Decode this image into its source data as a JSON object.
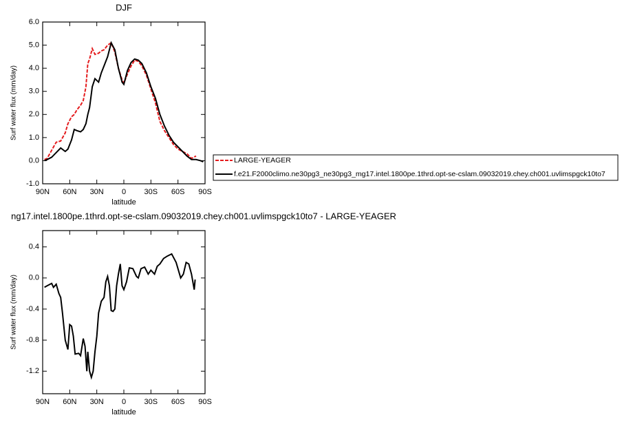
{
  "chart_data": [
    {
      "type": "line",
      "title": "DJF",
      "xlabel": "latitude",
      "ylabel": "Surf water flux (mm/day)",
      "x": [
        88,
        85,
        80,
        75,
        70,
        65,
        62,
        58,
        55,
        52,
        48,
        45,
        42,
        40,
        38,
        35,
        32,
        28,
        25,
        22,
        18,
        14,
        10,
        6,
        2,
        0,
        -4,
        -8,
        -12,
        -16,
        -20,
        -25,
        -30,
        -35,
        -40,
        -45,
        -50,
        -55,
        -60,
        -65,
        -70,
        -75,
        -80,
        -85,
        -88
      ],
      "series": [
        {
          "name": "LARGE-YEAGER",
          "color": "#e41a1c",
          "dashed": true,
          "values": [
            0.05,
            0.1,
            0.45,
            0.8,
            0.85,
            1.2,
            1.6,
            1.9,
            2.0,
            2.2,
            2.4,
            2.6,
            3.2,
            4.2,
            4.4,
            4.85,
            4.6,
            4.65,
            4.75,
            4.8,
            5.0,
            5.1,
            4.7,
            4.0,
            3.5,
            3.35,
            3.75,
            4.1,
            4.35,
            4.3,
            4.1,
            3.7,
            3.1,
            2.5,
            1.7,
            1.3,
            1.0,
            0.7,
            0.5,
            0.4,
            0.3,
            0.1,
            0.2,
            null,
            null
          ]
        },
        {
          "name": "f.e21.F2000climo.ne30pg3_ne30pg3_mg17.intel.1800pe.1thrd.opt-se-cslam.09032019.chey.ch001.uvlimspgck10to7",
          "color": "#000000",
          "dashed": false,
          "values": [
            0.0,
            0.05,
            0.15,
            0.35,
            0.55,
            0.4,
            0.5,
            0.9,
            1.35,
            1.3,
            1.25,
            1.35,
            1.6,
            2.0,
            2.3,
            3.2,
            3.55,
            3.4,
            3.8,
            4.1,
            4.5,
            5.1,
            4.8,
            4.0,
            3.4,
            3.3,
            3.9,
            4.25,
            4.4,
            4.35,
            4.2,
            3.8,
            3.2,
            2.7,
            2.0,
            1.5,
            1.1,
            0.8,
            0.6,
            0.4,
            0.2,
            0.05,
            0.05,
            0.0,
            -0.05
          ]
        }
      ],
      "xlim": [
        90,
        -90
      ],
      "xticks": [
        {
          "value": 90,
          "label": "90N"
        },
        {
          "value": 60,
          "label": "60N"
        },
        {
          "value": 30,
          "label": "30N"
        },
        0,
        {
          "value": -30,
          "label": "30S"
        },
        {
          "value": -60,
          "label": "60S"
        },
        {
          "value": -90,
          "label": "90S"
        }
      ],
      "ylim": [
        -1,
        6
      ],
      "yticks": [
        {
          "value": 6,
          "label": "6.0"
        },
        {
          "value": 5,
          "label": "5.0"
        },
        {
          "value": 4,
          "label": "4.0"
        },
        {
          "value": 3,
          "label": "3.0"
        },
        {
          "value": 2,
          "label": "2.0"
        },
        {
          "value": 1,
          "label": "1.0"
        },
        {
          "value": 0,
          "label": "0.0"
        },
        {
          "value": -1,
          "label": "-1.0"
        }
      ],
      "legend": "right"
    },
    {
      "type": "line",
      "title": "ng17.intel.1800pe.1thrd.opt-se-cslam.09032019.chey.ch001.uvlimspgck10to7 - LARGE-YEAGER",
      "xlabel": "latitude",
      "ylabel": "Surf water flux (mm/day)",
      "x": [
        88,
        85,
        80,
        78,
        75,
        72,
        70,
        68,
        65,
        62,
        60,
        58,
        56,
        54,
        50,
        48,
        45,
        43,
        41,
        40,
        38,
        36,
        34,
        32,
        30,
        28,
        25,
        22,
        20,
        18,
        16,
        14,
        12,
        10,
        8,
        6,
        4,
        2,
        0,
        -3,
        -6,
        -10,
        -14,
        -16,
        -19,
        -23,
        -27,
        -30,
        -34,
        -37,
        -40,
        -44,
        -48,
        -53,
        -58,
        -63,
        -66,
        -69,
        -72,
        -75,
        -78,
        -79
      ],
      "series": [
        {
          "color": "#000000",
          "dashed": false,
          "values": [
            -0.12,
            -0.1,
            -0.07,
            -0.12,
            -0.08,
            -0.2,
            -0.25,
            -0.45,
            -0.8,
            -0.92,
            -0.6,
            -0.62,
            -0.75,
            -0.98,
            -0.97,
            -1.0,
            -0.78,
            -0.88,
            -1.2,
            -0.95,
            -1.2,
            -1.28,
            -1.2,
            -0.95,
            -0.75,
            -0.45,
            -0.3,
            -0.25,
            -0.05,
            0.02,
            -0.1,
            -0.42,
            -0.43,
            -0.4,
            -0.1,
            0.05,
            0.18,
            -0.1,
            -0.15,
            -0.05,
            0.13,
            0.12,
            0.02,
            0.0,
            0.12,
            0.14,
            0.05,
            0.1,
            0.05,
            0.15,
            0.18,
            0.25,
            0.28,
            0.31,
            0.2,
            0.0,
            0.05,
            0.2,
            0.18,
            0.05,
            -0.15,
            -0.02
          ]
        }
      ],
      "xlim": [
        90,
        -90
      ],
      "xticks": [
        {
          "value": 90,
          "label": "90N"
        },
        {
          "value": 60,
          "label": "60N"
        },
        {
          "value": 30,
          "label": "30N"
        },
        0,
        {
          "value": -30,
          "label": "30S"
        },
        {
          "value": -60,
          "label": "60S"
        },
        {
          "value": -90,
          "label": "90S"
        }
      ],
      "ylim": [
        -1.49,
        0.61
      ],
      "yticks": [
        0.4,
        {
          "value": 0,
          "label": "0.0"
        },
        -0.4,
        -0.8,
        -1.2
      ]
    }
  ]
}
